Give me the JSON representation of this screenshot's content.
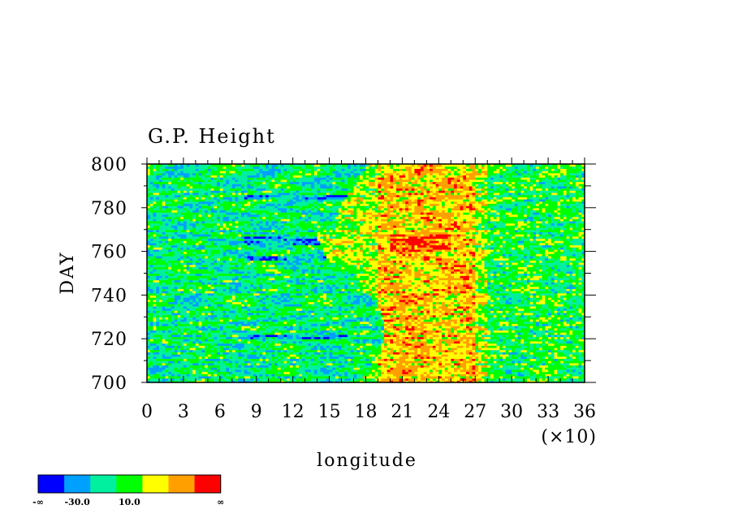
{
  "chart_data": {
    "type": "heatmap",
    "title": "G.P. Height",
    "xlabel": "longitude",
    "ylabel": "DAY",
    "x_multiplier_label": "(×10)",
    "xlim": [
      0,
      36
    ],
    "ylim": [
      700,
      800
    ],
    "x_ticks": [
      "0",
      "3",
      "6",
      "9",
      "12",
      "15",
      "18",
      "21",
      "24",
      "27",
      "30",
      "33",
      "36"
    ],
    "y_ticks": [
      "700",
      "720",
      "740",
      "760",
      "780",
      "800"
    ],
    "colorbar": {
      "colors": [
        "#0000ff",
        "#00a0ff",
        "#00f0a0",
        "#00ff00",
        "#ffff00",
        "#ffa000",
        "#ff0000"
      ],
      "tick_labels": [
        "-∞",
        "-30.0",
        "10.0",
        "∞"
      ]
    },
    "description_values": {
      "west_region_dominant": [
        "#00ff00",
        "#00f0a0"
      ],
      "east_region_dominant": [
        "#ffff00",
        "#ffa000",
        "#ff0000"
      ]
    }
  }
}
